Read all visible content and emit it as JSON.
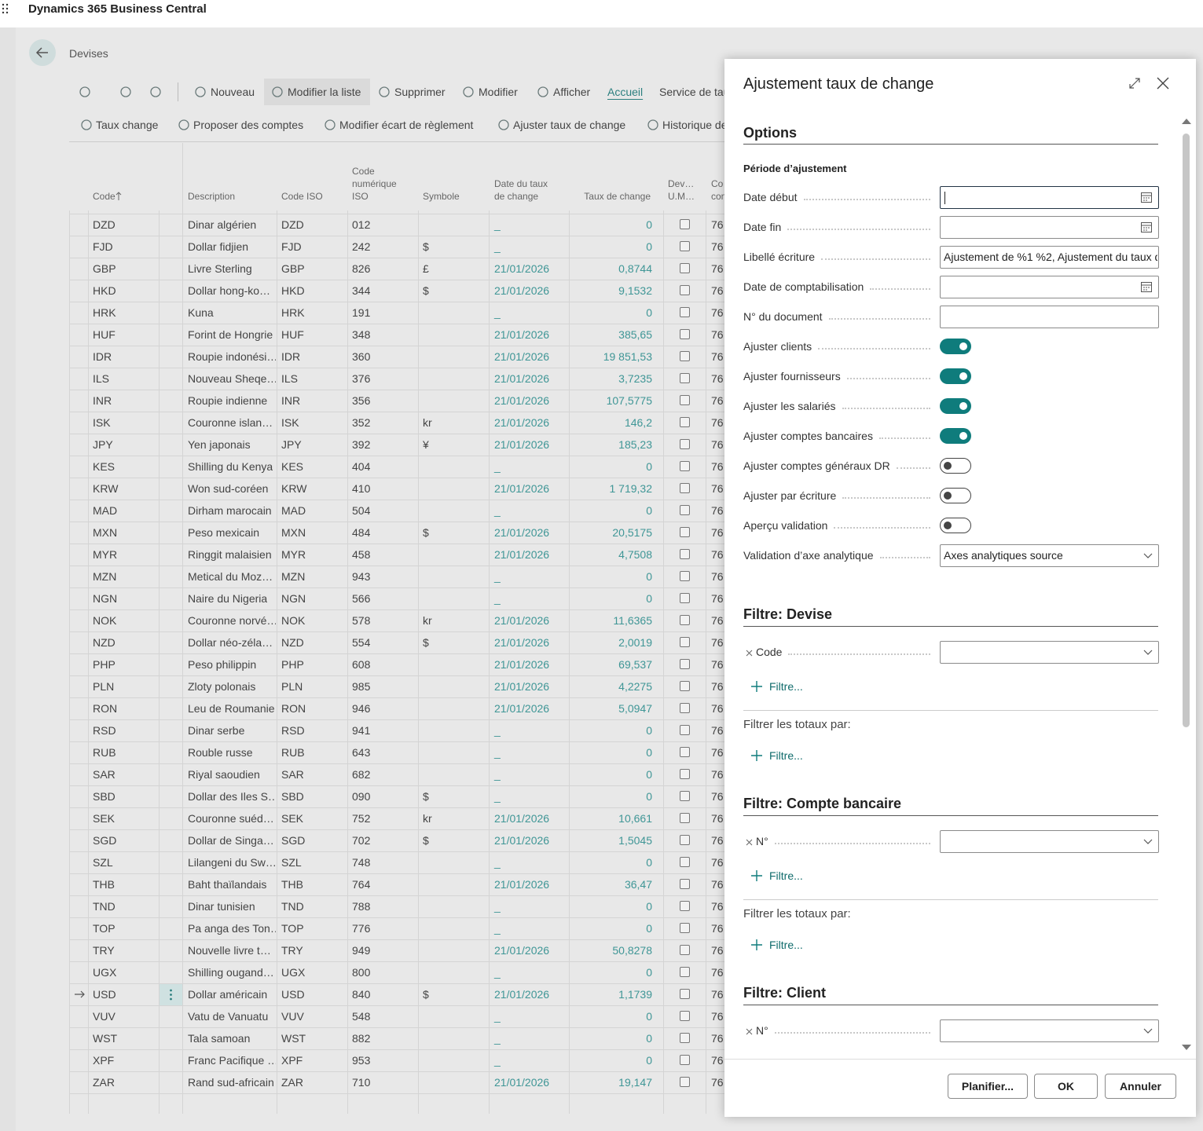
{
  "app": {
    "title": "Dynamics 365 Business Central"
  },
  "page": {
    "title": "Devises",
    "actions": [
      "Nouveau",
      "Modifier la liste",
      "Supprimer",
      "Modifier",
      "Afficher",
      "Accueil",
      "Service de tau"
    ],
    "subactions": [
      "Taux change",
      "Proposer des comptes",
      "Modifier écart de règlement",
      "Ajuster taux de change",
      "Historique de"
    ],
    "table": {
      "columns": [
        [
          "Code"
        ],
        [
          "Description"
        ],
        [
          "Code ISO"
        ],
        [
          "Code",
          "numérique",
          "ISO"
        ],
        [
          "Symbole"
        ],
        [
          "Date du taux",
          "de change"
        ],
        [
          "Taux de change"
        ],
        [
          "Dev…",
          "U.M…"
        ],
        [
          "Co",
          "con"
        ]
      ],
      "selected_index": 35,
      "rows": [
        [
          "DZD",
          "Dinar algérien",
          "DZD",
          "012",
          null,
          "_",
          "0",
          "76"
        ],
        [
          "FJD",
          "Dollar fidjien",
          "FJD",
          "242",
          "$",
          "_",
          "0",
          "76"
        ],
        [
          "GBP",
          "Livre Sterling",
          "GBP",
          "826",
          "£",
          "21/01/2026",
          "0,8744",
          "76"
        ],
        [
          "HKD",
          "Dollar hong-ko…",
          "HKD",
          "344",
          "$",
          "21/01/2026",
          "9,1532",
          "76"
        ],
        [
          "HRK",
          "Kuna",
          "HRK",
          "191",
          null,
          "_",
          "0",
          "76"
        ],
        [
          "HUF",
          "Forint de Hongrie",
          "HUF",
          "348",
          null,
          "21/01/2026",
          "385,65",
          "76"
        ],
        [
          "IDR",
          "Roupie indonési…",
          "IDR",
          "360",
          null,
          "21/01/2026",
          "19 851,53",
          "76"
        ],
        [
          "ILS",
          "Nouveau Sheqe…",
          "ILS",
          "376",
          null,
          "21/01/2026",
          "3,7235",
          "76"
        ],
        [
          "INR",
          "Roupie indienne",
          "INR",
          "356",
          null,
          "21/01/2026",
          "107,5775",
          "76"
        ],
        [
          "ISK",
          "Couronne islan…",
          "ISK",
          "352",
          "kr",
          "21/01/2026",
          "146,2",
          "76"
        ],
        [
          "JPY",
          "Yen japonais",
          "JPY",
          "392",
          "¥",
          "21/01/2026",
          "185,23",
          "76"
        ],
        [
          "KES",
          "Shilling du Kenya",
          "KES",
          "404",
          null,
          "_",
          "0",
          "76"
        ],
        [
          "KRW",
          "Won sud-coréen",
          "KRW",
          "410",
          null,
          "21/01/2026",
          "1 719,32",
          "76"
        ],
        [
          "MAD",
          "Dirham marocain",
          "MAD",
          "504",
          null,
          "_",
          "0",
          "76"
        ],
        [
          "MXN",
          "Peso mexicain",
          "MXN",
          "484",
          "$",
          "21/01/2026",
          "20,5175",
          "76"
        ],
        [
          "MYR",
          "Ringgit malaisien",
          "MYR",
          "458",
          null,
          "21/01/2026",
          "4,7508",
          "76"
        ],
        [
          "MZN",
          "Metical du Moz…",
          "MZN",
          "943",
          null,
          "_",
          "0",
          "76"
        ],
        [
          "NGN",
          "Naire du Nigeria",
          "NGN",
          "566",
          null,
          "_",
          "0",
          "76"
        ],
        [
          "NOK",
          "Couronne norvé…",
          "NOK",
          "578",
          "kr",
          "21/01/2026",
          "11,6365",
          "76"
        ],
        [
          "NZD",
          "Dollar néo-zéla…",
          "NZD",
          "554",
          "$",
          "21/01/2026",
          "2,0019",
          "76"
        ],
        [
          "PHP",
          "Peso philippin",
          "PHP",
          "608",
          null,
          "21/01/2026",
          "69,537",
          "76"
        ],
        [
          "PLN",
          "Zloty polonais",
          "PLN",
          "985",
          null,
          "21/01/2026",
          "4,2275",
          "76"
        ],
        [
          "RON",
          "Leu de Roumanie",
          "RON",
          "946",
          null,
          "21/01/2026",
          "5,0947",
          "76"
        ],
        [
          "RSD",
          "Dinar serbe",
          "RSD",
          "941",
          null,
          "_",
          "0",
          "76"
        ],
        [
          "RUB",
          "Rouble russe",
          "RUB",
          "643",
          null,
          "_",
          "0",
          "76"
        ],
        [
          "SAR",
          "Riyal saoudien",
          "SAR",
          "682",
          null,
          "_",
          "0",
          "76"
        ],
        [
          "SBD",
          "Dollar des Iles S…",
          "SBD",
          "090",
          "$",
          "_",
          "0",
          "76"
        ],
        [
          "SEK",
          "Couronne suéd…",
          "SEK",
          "752",
          "kr",
          "21/01/2026",
          "10,661",
          "76"
        ],
        [
          "SGD",
          "Dollar de Singa…",
          "SGD",
          "702",
          "$",
          "21/01/2026",
          "1,5045",
          "76"
        ],
        [
          "SZL",
          "Lilangeni du Sw…",
          "SZL",
          "748",
          null,
          "_",
          "0",
          "76"
        ],
        [
          "THB",
          "Baht thaïlandais",
          "THB",
          "764",
          null,
          "21/01/2026",
          "36,47",
          "76"
        ],
        [
          "TND",
          "Dinar tunisien",
          "TND",
          "788",
          null,
          "_",
          "0",
          "76"
        ],
        [
          "TOP",
          "Pa anga des Ton…",
          "TOP",
          "776",
          null,
          "_",
          "0",
          "76"
        ],
        [
          "TRY",
          "Nouvelle livre t…",
          "TRY",
          "949",
          null,
          "21/01/2026",
          "50,8278",
          "76"
        ],
        [
          "UGX",
          "Shilling ougand…",
          "UGX",
          "800",
          null,
          "_",
          "0",
          "76"
        ],
        [
          "USD",
          "Dollar américain",
          "USD",
          "840",
          "$",
          "21/01/2026",
          "1,1739",
          "76"
        ],
        [
          "VUV",
          "Vatu de Vanuatu",
          "VUV",
          "548",
          null,
          "_",
          "0",
          "76"
        ],
        [
          "WST",
          "Tala samoan",
          "WST",
          "882",
          null,
          "_",
          "0",
          "76"
        ],
        [
          "XPF",
          "Franc Pacifique …",
          "XPF",
          "953",
          null,
          "_",
          "0",
          "76"
        ],
        [
          "ZAR",
          "Rand sud-africain",
          "ZAR",
          "710",
          null,
          "21/01/2026",
          "19,147",
          "76"
        ]
      ]
    }
  },
  "dialog": {
    "title": "Ajustement taux de change",
    "options": {
      "title": "Options",
      "group": "Période d’ajustement",
      "fields": [
        {
          "label": "Date début",
          "kind": "date",
          "focused": true
        },
        {
          "label": "Date fin",
          "kind": "date"
        },
        {
          "label": "Libellé écriture",
          "kind": "text",
          "value": "Ajustement de %1 %2, Ajustement du taux d"
        },
        {
          "label": "Date de comptabilisation",
          "kind": "date"
        },
        {
          "label": "N° du document",
          "kind": "text"
        },
        {
          "label": "Ajuster clients",
          "kind": "toggle",
          "on": true
        },
        {
          "label": "Ajuster fournisseurs",
          "kind": "toggle",
          "on": true
        },
        {
          "label": "Ajuster les salariés",
          "kind": "toggle",
          "on": true
        },
        {
          "label": "Ajuster comptes bancaires",
          "kind": "toggle",
          "on": true
        },
        {
          "label": "Ajuster comptes généraux DR",
          "kind": "toggle",
          "on": false
        },
        {
          "label": "Ajuster par écriture",
          "kind": "toggle",
          "on": false
        },
        {
          "label": "Aperçu validation",
          "kind": "toggle",
          "on": false
        },
        {
          "label": "Validation d’axe analytique",
          "kind": "select",
          "value": "Axes analytiques source"
        }
      ]
    },
    "filters": [
      {
        "title": "Filtre: Devise",
        "field": "Code",
        "add": "Filtre...",
        "totals": "Filtrer les totaux par:",
        "totals_add": "Filtre..."
      },
      {
        "title": "Filtre: Compte bancaire",
        "field": "N°",
        "add": "Filtre...",
        "totals": "Filtrer les totaux par:",
        "totals_add": "Filtre..."
      },
      {
        "title": "Filtre: Client",
        "field": "N°"
      }
    ],
    "buttons": [
      "Planifier...",
      "OK",
      "Annuler"
    ]
  }
}
